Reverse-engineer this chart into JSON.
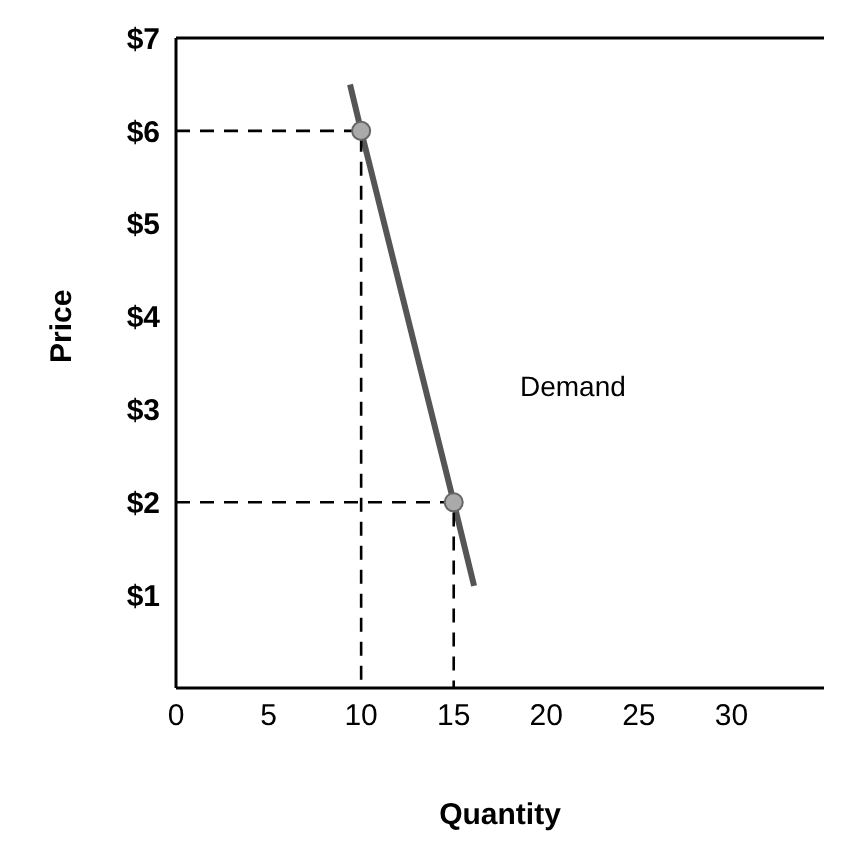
{
  "chart_data": {
    "type": "line",
    "xlabel": "Quantity",
    "ylabel": "Price",
    "xlim": [
      0,
      35
    ],
    "xticks": [
      0,
      5,
      10,
      15,
      20,
      25,
      30
    ],
    "ylim": [
      0,
      7
    ],
    "yticks": [
      {
        "value": 1,
        "label": "$1"
      },
      {
        "value": 2,
        "label": "$2"
      },
      {
        "value": 3,
        "label": "$3"
      },
      {
        "value": 4,
        "label": "$4"
      },
      {
        "value": 5,
        "label": "$5"
      },
      {
        "value": 6,
        "label": "$6"
      },
      {
        "value": 7,
        "label": "$7"
      }
    ],
    "grid": false,
    "series": [
      {
        "color": "#555555",
        "x": [
          9.4,
          10,
          15,
          16.1
        ],
        "values": [
          6.5,
          6,
          2,
          1.1
        ],
        "marker": "none",
        "line_style": "solid"
      },
      {
        "type": "line",
        "color": "#000000",
        "x": [
          0,
          10,
          10
        ],
        "values": [
          6,
          6,
          0
        ],
        "marker": "none",
        "line_style": "dashed"
      },
      {
        "type": "line",
        "color": "#000000",
        "x": [
          0,
          15,
          15
        ],
        "values": [
          2,
          2,
          0
        ],
        "marker": "none",
        "line_style": "dashed"
      },
      {
        "type": "scatter",
        "color": "#aaaaaa",
        "x": [
          10,
          15
        ],
        "values": [
          6,
          2
        ],
        "marker": "circle"
      }
    ],
    "annotations": [
      "Demand"
    ]
  }
}
